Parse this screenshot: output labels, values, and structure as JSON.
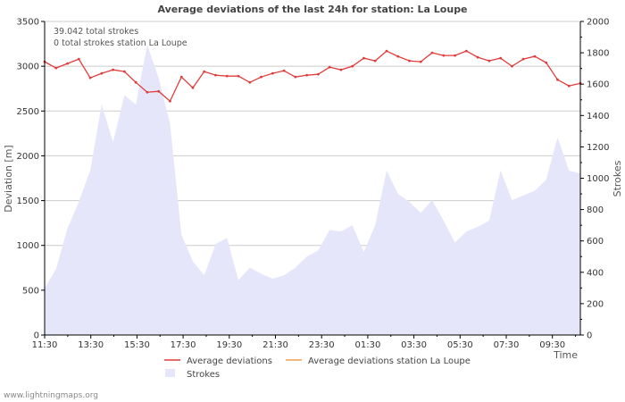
{
  "chart_data": {
    "type": "line",
    "title": "Average deviations of the last 24h for station: La Loupe",
    "xlabel": "Time",
    "ylabel": "Deviation  [m]",
    "y2label": "Strokes",
    "ylim": [
      0,
      3500
    ],
    "y2lim": [
      0,
      2000
    ],
    "yticks": [
      0,
      500,
      1000,
      1500,
      2000,
      2500,
      3000,
      3500
    ],
    "y2ticks": [
      0,
      200,
      400,
      600,
      800,
      1000,
      1200,
      1400,
      1600,
      1800,
      2000
    ],
    "xticks": [
      "11:30",
      "13:30",
      "15:30",
      "17:30",
      "19:30",
      "21:30",
      "23:30",
      "01:30",
      "03:30",
      "05:30",
      "07:30",
      "09:30"
    ],
    "annotations": [
      "39.042 total strokes",
      "0 total strokes station La Loupe"
    ],
    "series": [
      {
        "name": "Average deviations",
        "axis": "left",
        "color": "#e03c3c",
        "values": [
          3050,
          2980,
          3030,
          3080,
          2870,
          2920,
          2960,
          2940,
          2820,
          2710,
          2720,
          2610,
          2880,
          2760,
          2940,
          2900,
          2890,
          2890,
          2820,
          2880,
          2920,
          2950,
          2880,
          2900,
          2910,
          2990,
          2960,
          3000,
          3090,
          3060,
          3170,
          3110,
          3060,
          3050,
          3150,
          3120,
          3120,
          3170,
          3100,
          3060,
          3090,
          3000,
          3080,
          3110,
          3040,
          2850,
          2780,
          2810
        ]
      },
      {
        "name": "Average deviations station La Loupe",
        "axis": "left",
        "color": "#f0a050",
        "values": []
      },
      {
        "name": "Strokes",
        "axis": "right",
        "type": "area",
        "color": "#e6e6fa",
        "values": [
          300,
          420,
          680,
          850,
          1050,
          1470,
          1230,
          1530,
          1470,
          1850,
          1640,
          1350,
          640,
          470,
          380,
          580,
          620,
          350,
          430,
          390,
          360,
          380,
          430,
          500,
          540,
          670,
          660,
          700,
          530,
          700,
          1050,
          900,
          850,
          780,
          860,
          730,
          590,
          660,
          690,
          730,
          1050,
          860,
          890,
          920,
          990,
          1260,
          1050,
          1030
        ]
      }
    ]
  },
  "footer": {
    "credit": "www.lightningmaps.org"
  }
}
